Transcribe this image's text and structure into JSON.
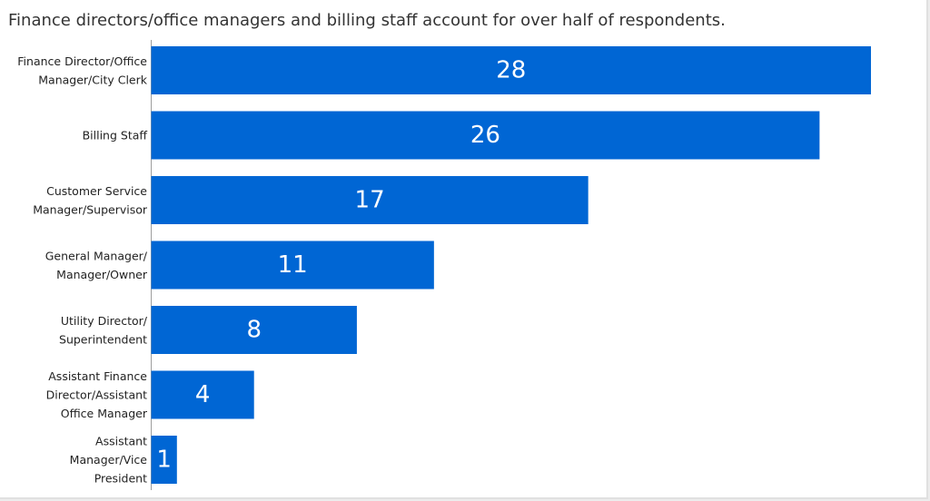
{
  "title": "Finance directors/office managers and billing staff account for over half of respondents.",
  "chart_data": {
    "type": "bar",
    "orientation": "horizontal",
    "title": "Finance directors/office managers and billing staff account for over half of respondents.",
    "categories": [
      [
        "Finance Director/Office",
        "Manager/City Clerk"
      ],
      [
        "Billing Staff"
      ],
      [
        "Customer Service",
        "Manager/Supervisor"
      ],
      [
        "General Manager/",
        "Manager/Owner"
      ],
      [
        "Utility Director/",
        "Superintendent"
      ],
      [
        "Assistant Finance",
        "Director/Assistant",
        "Office Manager"
      ],
      [
        "Assistant",
        "Manager/Vice",
        "President"
      ]
    ],
    "values": [
      28,
      26,
      17,
      11,
      8,
      4,
      1
    ],
    "xlim": [
      0,
      28
    ],
    "grid": false,
    "data_labels": true,
    "bar_color": "#0066d4",
    "xlabel": "",
    "ylabel": ""
  }
}
